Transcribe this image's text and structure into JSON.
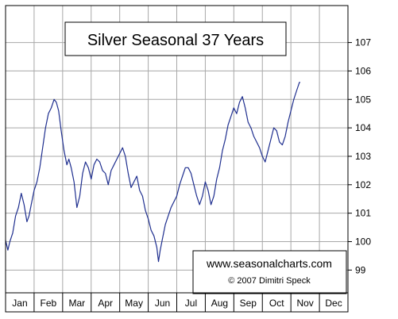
{
  "chart_data": {
    "type": "line",
    "title": "Silver Seasonal 37 Years",
    "xlabel": "",
    "ylabel": "",
    "categories": [
      "Jan",
      "Feb",
      "Mar",
      "Apr",
      "May",
      "Jun",
      "Jul",
      "Aug",
      "Sep",
      "Oct",
      "Nov",
      "Dec"
    ],
    "y_ticks": [
      99,
      100,
      101,
      102,
      103,
      104,
      105,
      106,
      107
    ],
    "ylim": [
      98.2,
      108.3
    ],
    "y_axis_side": "right",
    "grid": true,
    "line_color": "#1f2f8f",
    "series": [
      {
        "points": [
          [
            0.0,
            100.05
          ],
          [
            0.08,
            99.7
          ],
          [
            0.15,
            100.0
          ],
          [
            0.25,
            100.3
          ],
          [
            0.35,
            100.9
          ],
          [
            0.45,
            101.2
          ],
          [
            0.55,
            101.7
          ],
          [
            0.65,
            101.3
          ],
          [
            0.75,
            100.7
          ],
          [
            0.82,
            100.9
          ],
          [
            0.9,
            101.3
          ],
          [
            1.0,
            101.8
          ],
          [
            1.1,
            102.1
          ],
          [
            1.2,
            102.6
          ],
          [
            1.3,
            103.3
          ],
          [
            1.4,
            104.0
          ],
          [
            1.5,
            104.5
          ],
          [
            1.6,
            104.7
          ],
          [
            1.7,
            105.0
          ],
          [
            1.78,
            104.9
          ],
          [
            1.86,
            104.6
          ],
          [
            1.95,
            103.9
          ],
          [
            2.05,
            103.2
          ],
          [
            2.15,
            102.7
          ],
          [
            2.22,
            102.9
          ],
          [
            2.3,
            102.6
          ],
          [
            2.4,
            102.1
          ],
          [
            2.5,
            101.2
          ],
          [
            2.6,
            101.6
          ],
          [
            2.7,
            102.4
          ],
          [
            2.8,
            102.8
          ],
          [
            2.9,
            102.6
          ],
          [
            3.0,
            102.2
          ],
          [
            3.1,
            102.7
          ],
          [
            3.2,
            102.9
          ],
          [
            3.3,
            102.8
          ],
          [
            3.4,
            102.5
          ],
          [
            3.5,
            102.4
          ],
          [
            3.6,
            102.0
          ],
          [
            3.7,
            102.5
          ],
          [
            3.8,
            102.7
          ],
          [
            3.9,
            102.9
          ],
          [
            4.0,
            103.1
          ],
          [
            4.1,
            103.3
          ],
          [
            4.2,
            103.0
          ],
          [
            4.3,
            102.4
          ],
          [
            4.4,
            101.9
          ],
          [
            4.5,
            102.1
          ],
          [
            4.6,
            102.3
          ],
          [
            4.7,
            101.8
          ],
          [
            4.8,
            101.6
          ],
          [
            4.9,
            101.1
          ],
          [
            5.0,
            100.8
          ],
          [
            5.1,
            100.4
          ],
          [
            5.2,
            100.2
          ],
          [
            5.3,
            99.8
          ],
          [
            5.36,
            99.3
          ],
          [
            5.42,
            99.7
          ],
          [
            5.5,
            100.1
          ],
          [
            5.6,
            100.6
          ],
          [
            5.7,
            100.9
          ],
          [
            5.8,
            101.2
          ],
          [
            5.9,
            101.4
          ],
          [
            6.0,
            101.6
          ],
          [
            6.1,
            102.0
          ],
          [
            6.2,
            102.3
          ],
          [
            6.3,
            102.6
          ],
          [
            6.4,
            102.6
          ],
          [
            6.5,
            102.4
          ],
          [
            6.6,
            102.0
          ],
          [
            6.7,
            101.6
          ],
          [
            6.8,
            101.3
          ],
          [
            6.9,
            101.6
          ],
          [
            7.0,
            102.1
          ],
          [
            7.1,
            101.8
          ],
          [
            7.2,
            101.3
          ],
          [
            7.3,
            101.6
          ],
          [
            7.4,
            102.2
          ],
          [
            7.5,
            102.6
          ],
          [
            7.6,
            103.2
          ],
          [
            7.7,
            103.6
          ],
          [
            7.8,
            104.1
          ],
          [
            7.9,
            104.4
          ],
          [
            8.0,
            104.7
          ],
          [
            8.1,
            104.5
          ],
          [
            8.2,
            104.9
          ],
          [
            8.3,
            105.1
          ],
          [
            8.4,
            104.7
          ],
          [
            8.5,
            104.2
          ],
          [
            8.6,
            104.0
          ],
          [
            8.7,
            103.7
          ],
          [
            8.8,
            103.5
          ],
          [
            8.9,
            103.3
          ],
          [
            9.0,
            103.0
          ],
          [
            9.1,
            102.8
          ],
          [
            9.2,
            103.2
          ],
          [
            9.3,
            103.6
          ],
          [
            9.4,
            104.0
          ],
          [
            9.5,
            103.9
          ],
          [
            9.6,
            103.5
          ],
          [
            9.7,
            103.4
          ],
          [
            9.8,
            103.7
          ],
          [
            9.9,
            104.2
          ],
          [
            10.0,
            104.6
          ],
          [
            10.1,
            105.0
          ],
          [
            10.2,
            105.3
          ],
          [
            10.3,
            105.6
          ],
          [
            10.33,
            105.6
          ]
        ]
      }
    ]
  },
  "credits": {
    "website": "www.seasonalcharts.com",
    "copyright": "© 2007  Dimitri Speck"
  }
}
